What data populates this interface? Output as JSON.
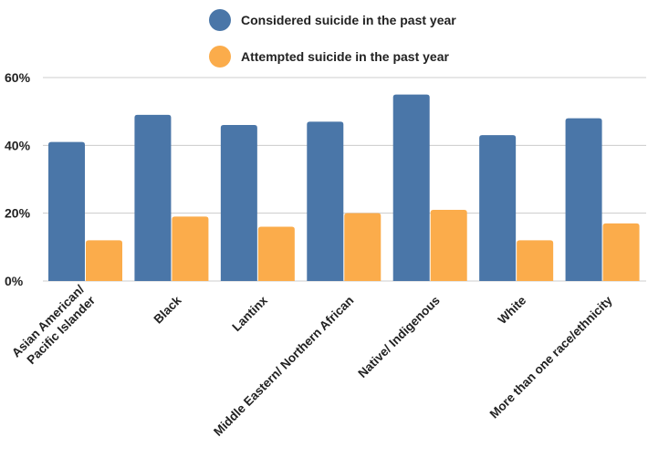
{
  "chart_data": {
    "type": "bar",
    "categories": [
      [
        "Asian American/",
        "Pacific Islander"
      ],
      [
        "Black"
      ],
      [
        "Lantinx"
      ],
      [
        "Middle Eastern/ Northern African"
      ],
      [
        "Native/ Indigenous"
      ],
      [
        "White"
      ],
      [
        "More than one race/ethnicity"
      ]
    ],
    "series": [
      {
        "name": "Considered suicide in the past year",
        "color": "#4a76a8",
        "values": [
          41,
          49,
          46,
          47,
          55,
          43,
          48
        ]
      },
      {
        "name": "Attempted suicide in the past year",
        "color": "#fbac4b",
        "values": [
          12,
          19,
          16,
          20,
          21,
          12,
          17
        ]
      }
    ],
    "yticks": [
      "0%",
      "20%",
      "40%",
      "60%"
    ],
    "ylim": [
      0,
      60
    ],
    "grid": true,
    "legend_position": "top-center",
    "gridline_color": "#cccccc"
  }
}
